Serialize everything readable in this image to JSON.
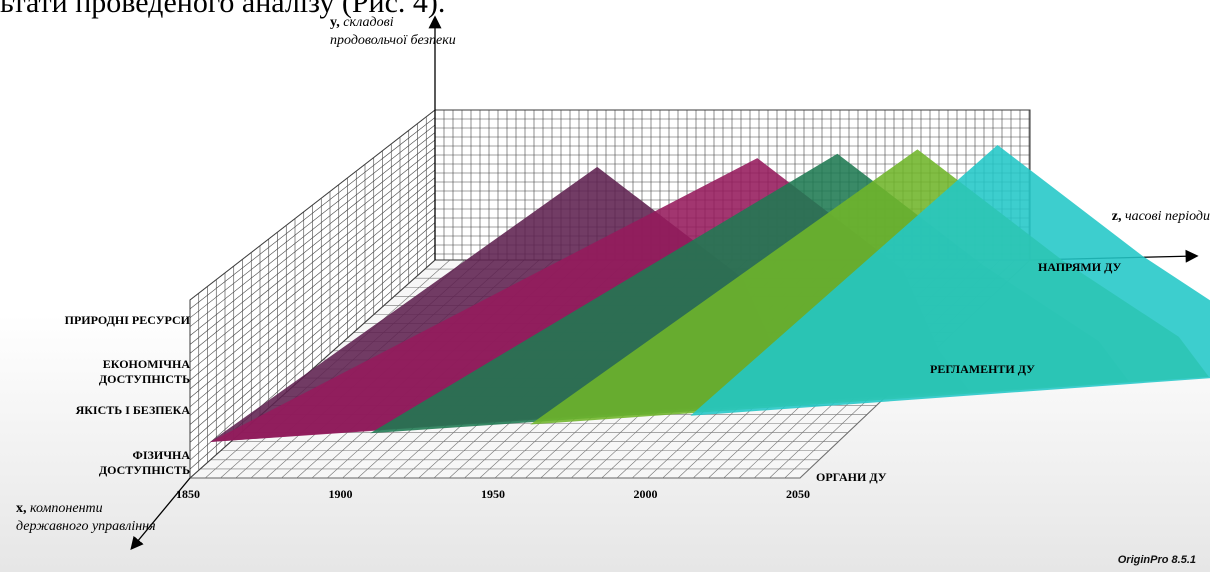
{
  "caption": "ьтати проведеного аналізу (Рис. 4).",
  "chart_data": {
    "type": "area",
    "subtype": "3d-layered-surface",
    "y_axis": {
      "label_bold": "y,",
      "label_italic": "складові продовольчої безпеки",
      "categories": [
        "ФІЗИЧНА ДОСТУПНІСТЬ",
        "ЯКІСТЬ І БЕЗПЕКА",
        "ЕКОНОМІЧНА ДОСТУПНІСТЬ",
        "ПРИРОДНІ РЕСУРСИ"
      ]
    },
    "x_axis": {
      "label_bold": "x,",
      "label_italic": "компоненти державного управління",
      "ticks": [
        1850,
        1900,
        1950,
        2000,
        2050
      ]
    },
    "z_axis": {
      "label_bold": "z,",
      "label_italic": "часові періоди",
      "categories": [
        "ОРГАНИ ДУ",
        "РЕГЛАМЕНТИ ДУ",
        "НАПРЯМИ ДУ"
      ]
    },
    "grid": true,
    "series": [
      {
        "color": "#5e2150",
        "points": [
          [
            1850,
            1
          ],
          [
            1925,
            4
          ],
          [
            1975,
            3
          ],
          [
            2000,
            2
          ]
        ]
      },
      {
        "color": "#951a5c",
        "points": [
          [
            1850,
            1
          ],
          [
            1975,
            4
          ],
          [
            2025,
            3
          ],
          [
            2050,
            2
          ]
        ]
      },
      {
        "color": "#1f7a52",
        "points": [
          [
            1900,
            1
          ],
          [
            2000,
            4
          ],
          [
            2050,
            3
          ],
          [
            2100,
            2
          ]
        ]
      },
      {
        "color": "#6fb52a",
        "points": [
          [
            1950,
            1
          ],
          [
            2025,
            4
          ],
          [
            2075,
            3
          ],
          [
            2125,
            2
          ]
        ]
      },
      {
        "color": "#22c7c7",
        "points": [
          [
            2000,
            1
          ],
          [
            2050,
            4
          ],
          [
            2100,
            3
          ],
          [
            2150,
            2
          ]
        ]
      }
    ]
  },
  "watermark": "OriginPro 8.5.1"
}
